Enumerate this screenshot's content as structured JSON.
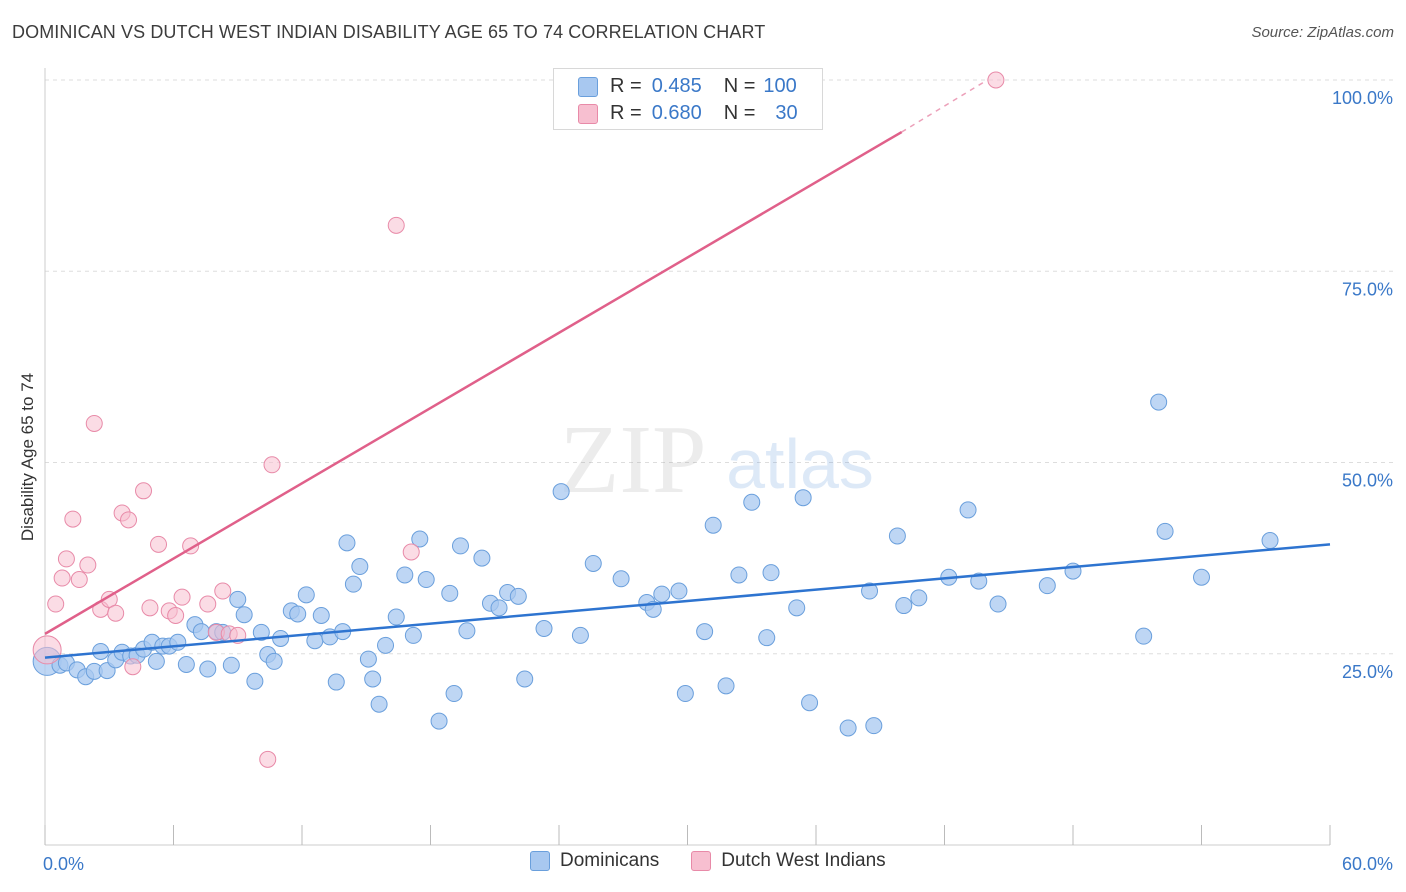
{
  "title": "DOMINICAN VS DUTCH WEST INDIAN DISABILITY AGE 65 TO 74 CORRELATION CHART",
  "source": "Source: ZipAtlas.com",
  "watermark": {
    "zip": "ZIP",
    "atlas": "atlas"
  },
  "colors": {
    "blue_fill": "#a8c8f0",
    "blue_stroke": "#6a9fdc",
    "blue_line": "#2e74d0",
    "pink_fill": "#f7bfd0",
    "pink_stroke": "#e88aa8",
    "pink_line": "#e0608a",
    "axis_text": "#3a78c8",
    "grid": "#dddddd"
  },
  "stats": {
    "r_label": "R =",
    "n_label": "N =",
    "series": [
      {
        "name": "Dominicans",
        "r": "0.485",
        "n": "100"
      },
      {
        "name": "Dutch West Indians",
        "r": "0.680",
        "n": "30"
      }
    ]
  },
  "chart_data": {
    "type": "scatter",
    "title": "DOMINICAN VS DUTCH WEST INDIAN DISABILITY AGE 65 TO 74 CORRELATION CHART",
    "xlabel": "",
    "ylabel": "Disability Age 65 to 74",
    "xlim": [
      0,
      60
    ],
    "ylim": [
      0,
      100
    ],
    "x_tick_labels": [
      "0.0%",
      "60.0%"
    ],
    "y_ticks": [
      25,
      50,
      75,
      100
    ],
    "y_tick_labels": [
      "25.0%",
      "50.0%",
      "75.0%",
      "100.0%"
    ],
    "legend": [
      "Dominicans",
      "Dutch West Indians"
    ],
    "series": [
      {
        "name": "Dominicans",
        "trend": {
          "x0": 0,
          "y0": 24.5,
          "x1": 60,
          "y1": 39.3
        },
        "points": [
          [
            0.1,
            24.0
          ],
          [
            0.7,
            23.5
          ],
          [
            1.0,
            23.8
          ],
          [
            1.5,
            22.9
          ],
          [
            1.9,
            22.0
          ],
          [
            2.3,
            22.7
          ],
          [
            2.6,
            25.3
          ],
          [
            2.9,
            22.8
          ],
          [
            3.3,
            24.2
          ],
          [
            3.6,
            25.2
          ],
          [
            4.0,
            24.7
          ],
          [
            4.3,
            24.8
          ],
          [
            4.6,
            25.6
          ],
          [
            5.0,
            26.5
          ],
          [
            5.2,
            24.0
          ],
          [
            5.5,
            26.0
          ],
          [
            5.8,
            26.0
          ],
          [
            6.2,
            26.5
          ],
          [
            6.6,
            23.6
          ],
          [
            7.0,
            28.8
          ],
          [
            7.3,
            27.9
          ],
          [
            7.6,
            23.0
          ],
          [
            8.0,
            27.9
          ],
          [
            8.3,
            27.8
          ],
          [
            8.7,
            23.5
          ],
          [
            9.0,
            32.1
          ],
          [
            9.3,
            30.1
          ],
          [
            9.8,
            21.4
          ],
          [
            10.1,
            27.8
          ],
          [
            10.4,
            24.9
          ],
          [
            10.7,
            24.0
          ],
          [
            11.0,
            27.0
          ],
          [
            11.5,
            30.6
          ],
          [
            11.8,
            30.2
          ],
          [
            12.2,
            32.7
          ],
          [
            12.6,
            26.7
          ],
          [
            12.9,
            30.0
          ],
          [
            13.3,
            27.2
          ],
          [
            13.6,
            21.3
          ],
          [
            13.9,
            27.9
          ],
          [
            14.1,
            39.5
          ],
          [
            14.4,
            34.1
          ],
          [
            14.7,
            36.4
          ],
          [
            15.1,
            24.3
          ],
          [
            15.3,
            21.7
          ],
          [
            15.6,
            18.4
          ],
          [
            15.9,
            26.1
          ],
          [
            16.4,
            29.8
          ],
          [
            16.8,
            35.3
          ],
          [
            17.2,
            27.4
          ],
          [
            17.5,
            40.0
          ],
          [
            17.8,
            34.7
          ],
          [
            18.4,
            16.2
          ],
          [
            18.9,
            32.9
          ],
          [
            19.1,
            19.8
          ],
          [
            19.4,
            39.1
          ],
          [
            19.7,
            28.0
          ],
          [
            20.4,
            37.5
          ],
          [
            20.8,
            31.6
          ],
          [
            21.2,
            31.0
          ],
          [
            21.6,
            33.0
          ],
          [
            22.1,
            32.5
          ],
          [
            22.4,
            21.7
          ],
          [
            23.3,
            28.3
          ],
          [
            24.1,
            46.2
          ],
          [
            25.0,
            27.4
          ],
          [
            25.6,
            36.8
          ],
          [
            26.9,
            34.8
          ],
          [
            28.1,
            31.7
          ],
          [
            28.4,
            30.8
          ],
          [
            28.8,
            32.8
          ],
          [
            29.6,
            33.2
          ],
          [
            29.9,
            19.8
          ],
          [
            30.8,
            27.9
          ],
          [
            31.2,
            41.8
          ],
          [
            31.8,
            20.8
          ],
          [
            32.4,
            35.3
          ],
          [
            33.0,
            44.8
          ],
          [
            33.7,
            27.1
          ],
          [
            33.9,
            35.6
          ],
          [
            35.1,
            31.0
          ],
          [
            35.4,
            45.4
          ],
          [
            35.7,
            18.6
          ],
          [
            37.5,
            15.3
          ],
          [
            38.5,
            33.2
          ],
          [
            38.7,
            15.6
          ],
          [
            40.1,
            31.3
          ],
          [
            39.8,
            40.4
          ],
          [
            40.8,
            32.3
          ],
          [
            42.2,
            35.0
          ],
          [
            43.1,
            43.8
          ],
          [
            43.6,
            34.5
          ],
          [
            44.5,
            31.5
          ],
          [
            46.8,
            33.9
          ],
          [
            48.0,
            35.8
          ],
          [
            51.3,
            27.3
          ],
          [
            52.0,
            57.9
          ],
          [
            52.3,
            41.0
          ],
          [
            57.2,
            39.8
          ],
          [
            54.0,
            35.0
          ]
        ]
      },
      {
        "name": "Dutch West Indians",
        "trend": {
          "x0": 0,
          "y0": 27.6,
          "x1": 40,
          "y1": 93.2,
          "dash_x1": 44,
          "dash_y1": 100
        },
        "points": [
          [
            0.1,
            25.5
          ],
          [
            0.5,
            31.5
          ],
          [
            0.8,
            34.9
          ],
          [
            1.0,
            37.4
          ],
          [
            1.3,
            42.6
          ],
          [
            1.6,
            34.7
          ],
          [
            2.0,
            36.6
          ],
          [
            2.3,
            55.1
          ],
          [
            2.6,
            30.8
          ],
          [
            3.0,
            32.1
          ],
          [
            3.3,
            30.3
          ],
          [
            3.6,
            43.4
          ],
          [
            3.9,
            42.5
          ],
          [
            4.1,
            23.3
          ],
          [
            4.6,
            46.3
          ],
          [
            4.9,
            31.0
          ],
          [
            5.3,
            39.3
          ],
          [
            5.8,
            30.6
          ],
          [
            6.1,
            30.0
          ],
          [
            6.4,
            32.4
          ],
          [
            6.8,
            39.1
          ],
          [
            7.6,
            31.5
          ],
          [
            8.0,
            27.8
          ],
          [
            8.3,
            33.2
          ],
          [
            8.6,
            27.6
          ],
          [
            9.0,
            27.4
          ],
          [
            10.4,
            11.2
          ],
          [
            10.6,
            49.7
          ],
          [
            16.4,
            81.0
          ],
          [
            17.1,
            38.3
          ]
        ]
      }
    ]
  }
}
